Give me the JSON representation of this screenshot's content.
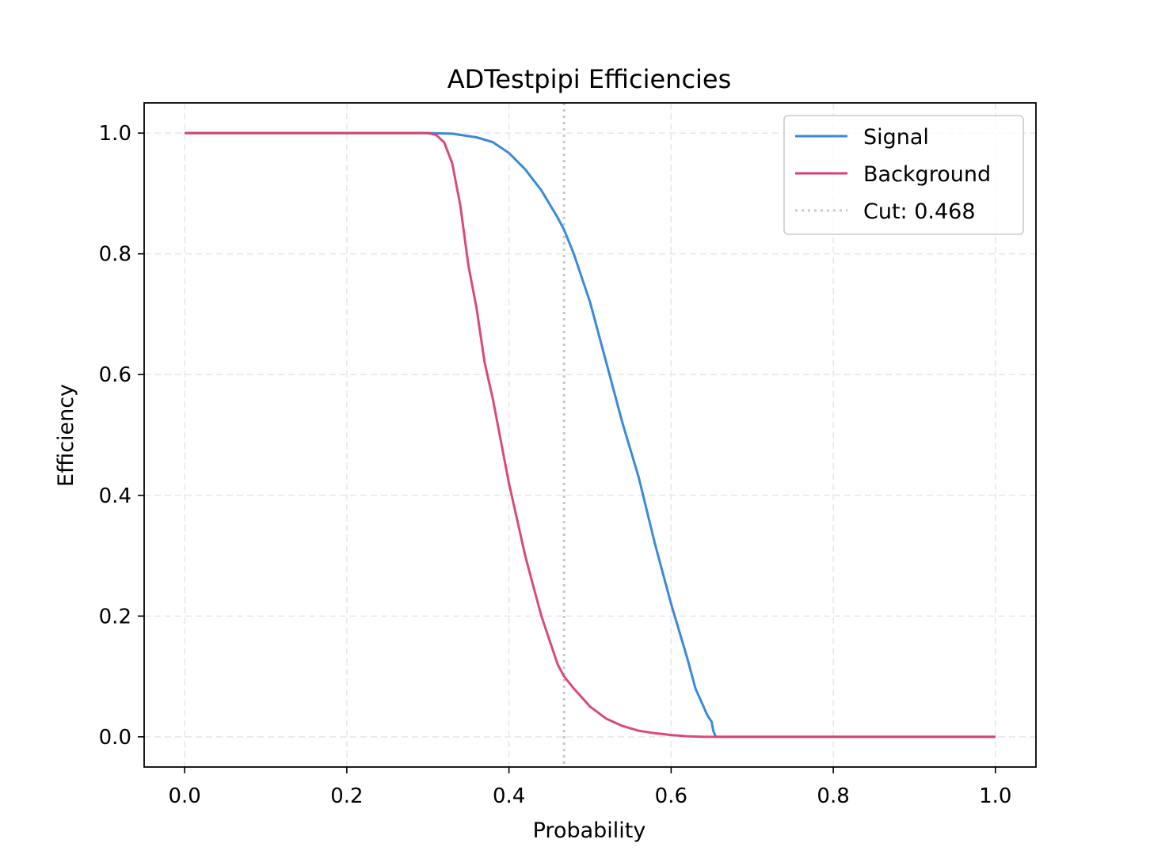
{
  "chart_data": {
    "type": "line",
    "title": "ADTestpipi Efficiencies",
    "xlabel": "Probability",
    "ylabel": "Efficiency",
    "xlim": [
      -0.05,
      1.05
    ],
    "ylim": [
      -0.05,
      1.05
    ],
    "xticks": [
      0.0,
      0.2,
      0.4,
      0.6,
      0.8,
      1.0
    ],
    "xtick_labels": [
      "0.0",
      "0.2",
      "0.4",
      "0.6",
      "0.8",
      "1.0"
    ],
    "yticks": [
      0.0,
      0.2,
      0.4,
      0.6,
      0.8,
      1.0
    ],
    "ytick_labels": [
      "0.0",
      "0.2",
      "0.4",
      "0.6",
      "0.8",
      "1.0"
    ],
    "grid": true,
    "legend_position": "top-right",
    "series": [
      {
        "name": "Signal",
        "color": "#3a8ad8",
        "x": [
          0.0,
          0.1,
          0.2,
          0.3,
          0.33,
          0.36,
          0.38,
          0.4,
          0.42,
          0.44,
          0.46,
          0.468,
          0.48,
          0.5,
          0.52,
          0.54,
          0.56,
          0.58,
          0.6,
          0.62,
          0.63,
          0.64,
          0.645,
          0.65,
          0.652,
          0.655,
          0.7,
          0.8,
          0.9,
          1.0
        ],
        "y": [
          1.0,
          1.0,
          1.0,
          1.0,
          0.999,
          0.993,
          0.985,
          0.967,
          0.94,
          0.905,
          0.86,
          0.84,
          0.8,
          0.72,
          0.62,
          0.52,
          0.43,
          0.32,
          0.22,
          0.13,
          0.08,
          0.05,
          0.035,
          0.025,
          0.01,
          0.0,
          0.0,
          0.0,
          0.0,
          0.0
        ]
      },
      {
        "name": "Background",
        "color": "#d9406f",
        "x": [
          0.0,
          0.1,
          0.2,
          0.3,
          0.31,
          0.32,
          0.33,
          0.34,
          0.35,
          0.36,
          0.37,
          0.38,
          0.39,
          0.4,
          0.41,
          0.42,
          0.43,
          0.44,
          0.45,
          0.46,
          0.468,
          0.48,
          0.5,
          0.52,
          0.54,
          0.56,
          0.58,
          0.6,
          0.62,
          0.64,
          0.66,
          0.8,
          1.0
        ],
        "y": [
          1.0,
          1.0,
          1.0,
          1.0,
          0.997,
          0.985,
          0.95,
          0.88,
          0.78,
          0.71,
          0.62,
          0.56,
          0.49,
          0.42,
          0.36,
          0.3,
          0.25,
          0.2,
          0.16,
          0.12,
          0.1,
          0.08,
          0.05,
          0.03,
          0.018,
          0.01,
          0.006,
          0.003,
          0.001,
          0.0,
          0.0,
          0.0,
          0.0
        ]
      }
    ],
    "cut": {
      "label": "Cut: 0.468",
      "value": 0.468,
      "color": "#c8c8c8",
      "style": "dotted"
    }
  }
}
